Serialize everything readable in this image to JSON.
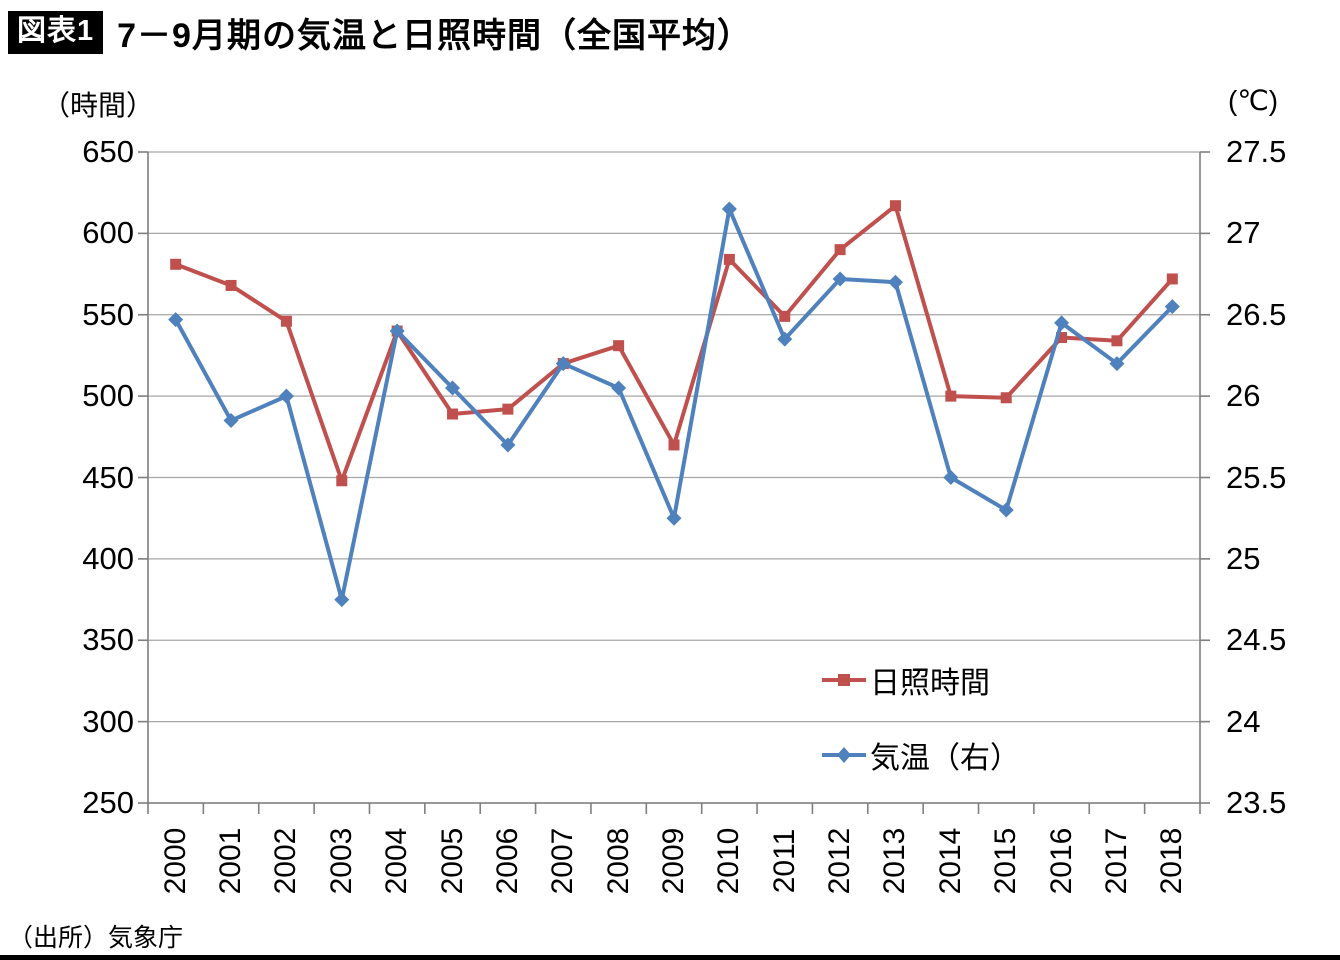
{
  "header": {
    "badge": "図表1",
    "title": "7－9月期の気温と日照時間（全国平均）"
  },
  "source": "（出所）気象庁",
  "colors": {
    "sunshine": "#C0504D",
    "temperature": "#4F81BD",
    "grid": "#A6A6A6",
    "axis": "#7F7F7F"
  },
  "legend": {
    "items": [
      {
        "label": "日照時間",
        "series": 0
      },
      {
        "label": "気温（右）",
        "series": 1
      }
    ]
  },
  "chart_data": {
    "type": "line",
    "categories": [
      "2000",
      "2001",
      "2002",
      "2003",
      "2004",
      "2005",
      "2006",
      "2007",
      "2008",
      "2009",
      "2010",
      "2011",
      "2012",
      "2013",
      "2014",
      "2015",
      "2016",
      "2017",
      "2018"
    ],
    "series": [
      {
        "name": "日照時間",
        "axis": "left",
        "marker": "square",
        "color": "#C0504D",
        "values": [
          581,
          568,
          546,
          448,
          540,
          489,
          492,
          520,
          531,
          470,
          584,
          549,
          590,
          617,
          500,
          499,
          536,
          534,
          572
        ]
      },
      {
        "name": "気温（右）",
        "axis": "right",
        "marker": "diamond",
        "color": "#4F81BD",
        "values": [
          26.47,
          25.85,
          26.0,
          24.75,
          26.4,
          26.05,
          25.7,
          26.2,
          26.05,
          25.25,
          27.15,
          26.35,
          26.72,
          26.7,
          25.5,
          25.3,
          26.45,
          26.2,
          26.55
        ]
      }
    ],
    "left_axis": {
      "unit": "（時間）",
      "min": 250,
      "max": 650,
      "tick_labels": [
        "650",
        "600",
        "550",
        "500",
        "450",
        "400",
        "350",
        "300",
        "250"
      ]
    },
    "right_axis": {
      "unit": "(℃)",
      "min": 23.5,
      "max": 27.5,
      "tick_labels": [
        "27.5",
        "27",
        "26.5",
        "26",
        "25.5",
        "25",
        "24.5",
        "24",
        "23.5"
      ]
    },
    "grid": true,
    "legend_position": "inside-lower-right"
  }
}
